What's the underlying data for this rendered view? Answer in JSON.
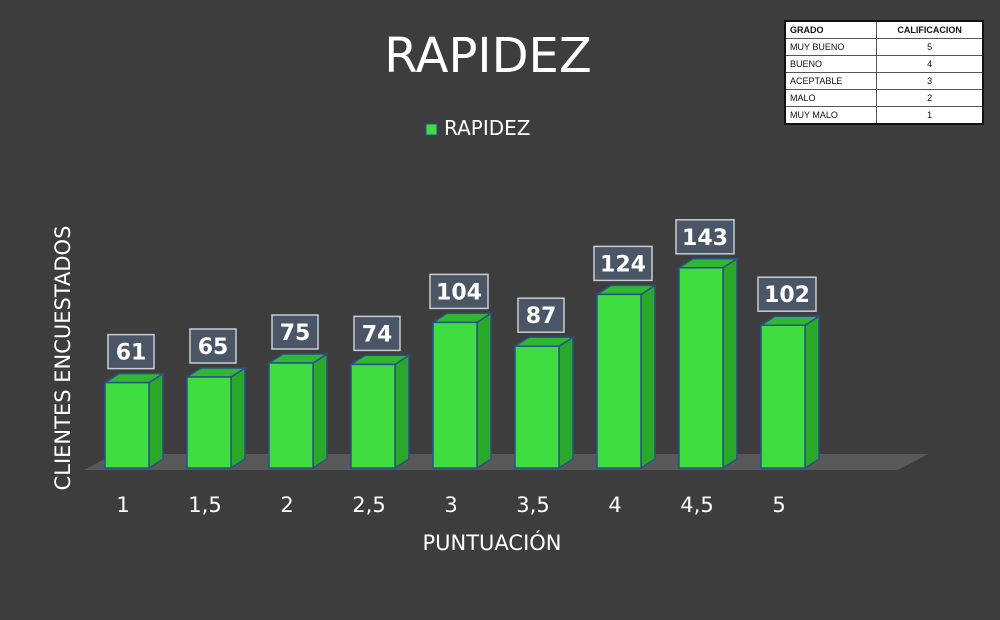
{
  "chart_data": {
    "type": "bar",
    "title": "RAPIDEZ",
    "xlabel": "PUNTUACIÓN",
    "ylabel": "CLIENTES ENCUESTADOS",
    "categories": [
      "1",
      "1,5",
      "2",
      "2,5",
      "3",
      "3,5",
      "4",
      "4,5",
      "5"
    ],
    "series": [
      {
        "name": "RAPIDEZ",
        "values": [
          61,
          65,
          75,
          74,
          104,
          87,
          124,
          143,
          102
        ]
      }
    ],
    "ylim": [
      0,
      165
    ],
    "legend": "top-center",
    "grid": false,
    "colors": {
      "bar_front": "#3fdd3f",
      "bar_side": "#2aa82a",
      "bar_top": "#31b831",
      "bar_edge": "#2a4f8a",
      "label_bg": "#4a5566",
      "background": "#3d3d3d",
      "floor": "#5a5a5a"
    }
  },
  "grade_table": {
    "headers": [
      "GRADO",
      "CALIFICACION"
    ],
    "rows": [
      [
        "MUY BUENO",
        "5"
      ],
      [
        "BUENO",
        "4"
      ],
      [
        "ACEPTABLE",
        "3"
      ],
      [
        "MALO",
        "2"
      ],
      [
        "MUY MALO",
        "1"
      ]
    ]
  }
}
